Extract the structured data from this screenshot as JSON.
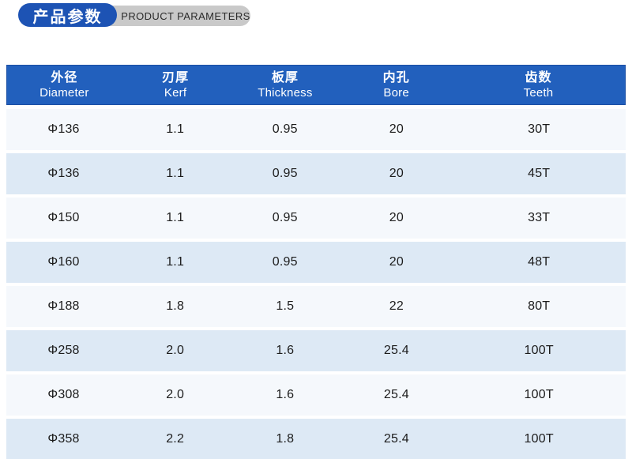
{
  "badge": {
    "title_zh": "产品参数",
    "title_en": "PRODUCT PARAMETERS",
    "blue_color": "#1d53b4",
    "gray_color": "#c9c9c9"
  },
  "table": {
    "header_bg": "#2260bd",
    "header_border": "#1c4fa4",
    "header_text_color": "#ffffff",
    "row_bg_odd": "#f5f8fc",
    "row_bg_even": "#dde9f5",
    "columns": [
      {
        "zh": "外径",
        "en": "Diameter"
      },
      {
        "zh": "刃厚",
        "en": "Kerf"
      },
      {
        "zh": "板厚",
        "en": "Thickness"
      },
      {
        "zh": "内孔",
        "en": "Bore"
      },
      {
        "zh": "齿数",
        "en": "Teeth"
      }
    ],
    "rows": [
      [
        "Φ136",
        "1.1",
        "0.95",
        "20",
        "30T"
      ],
      [
        "Φ136",
        "1.1",
        "0.95",
        "20",
        "45T"
      ],
      [
        "Φ150",
        "1.1",
        "0.95",
        "20",
        "33T"
      ],
      [
        "Φ160",
        "1.1",
        "0.95",
        "20",
        "48T"
      ],
      [
        "Φ188",
        "1.8",
        "1.5",
        "22",
        "80T"
      ],
      [
        "Φ258",
        "2.0",
        "1.6",
        "25.4",
        "100T"
      ],
      [
        "Φ308",
        "2.0",
        "1.6",
        "25.4",
        "100T"
      ],
      [
        "Φ358",
        "2.2",
        "1.8",
        "25.4",
        "100T"
      ]
    ]
  }
}
